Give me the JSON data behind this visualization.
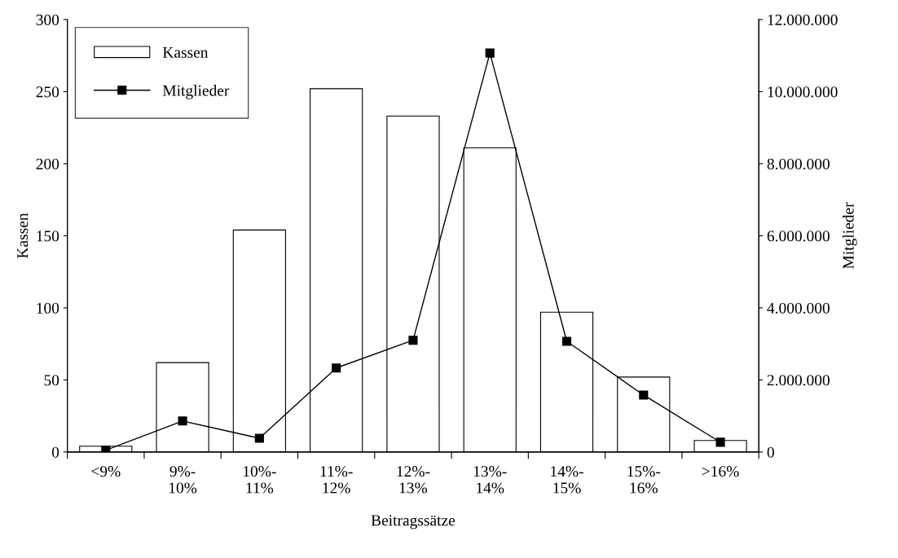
{
  "chart_data": {
    "type": "bar",
    "xlabel": "Beitragssätze",
    "ylabel": "Kassen",
    "y2label": "Mitglieder",
    "categories": [
      "<9%",
      "9%-\n10%",
      "10%-\n11%",
      "11%-\n12%",
      "12%-\n13%",
      "13%-\n14%",
      "14%-\n15%",
      "15%-\n16%",
      ">16%"
    ],
    "series": [
      {
        "name": "Kassen",
        "color": "#ffffff",
        "values": [
          4,
          62,
          154,
          252,
          233,
          211,
          97,
          52,
          8
        ]
      },
      {
        "name": "Mitglieder",
        "type": "line",
        "axis": "y2",
        "color": "#000000",
        "marker": "square",
        "values": [
          50000,
          860000,
          380000,
          2330000,
          3100000,
          11070000,
          3070000,
          1580000,
          270000
        ]
      }
    ],
    "ylim": [
      0,
      300
    ],
    "yticks": [
      0,
      50,
      100,
      150,
      200,
      250,
      300
    ],
    "y2lim": [
      0,
      12000000
    ],
    "y2ticks": [
      0,
      {
        "value": 2000000,
        "label": "2.000.000"
      },
      {
        "value": 4000000,
        "label": "4.000.000"
      },
      {
        "value": 6000000,
        "label": "6.000.000"
      },
      {
        "value": 8000000,
        "label": "8.000.000"
      },
      {
        "value": 10000000,
        "label": "10.000.000"
      },
      {
        "value": 12000000,
        "label": "12.000.000"
      }
    ],
    "grid": false,
    "legend": "top left"
  }
}
